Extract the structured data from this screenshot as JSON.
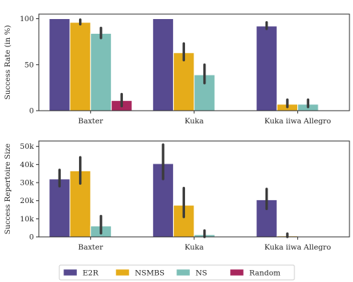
{
  "colors": {
    "E2R": "#574a90",
    "NSMBS": "#e5ac1a",
    "NS": "#7dbfb7",
    "Random": "#a8275d",
    "errorbar": "#3b3b3b",
    "axis": "#262626"
  },
  "legend": {
    "placement": "bottom-center",
    "entries": [
      "E2R",
      "NSMBS",
      "NS",
      "Random"
    ]
  },
  "chart_data": [
    {
      "type": "bar",
      "ylabel": "Success Rate (in %)",
      "categories": [
        "Baxter",
        "Kuka",
        "Kuka iiwa Allegro"
      ],
      "ylim": [
        0,
        105
      ],
      "yticks": [
        0,
        50,
        100
      ],
      "ytick_labels": [
        "0",
        "50",
        "100"
      ],
      "grid": false,
      "series": [
        {
          "name": "E2R",
          "values": [
            100,
            100,
            92
          ],
          "err_low": [
            null,
            null,
            89
          ],
          "err_high": [
            null,
            null,
            96
          ]
        },
        {
          "name": "NSMBS",
          "values": [
            96,
            63,
            7
          ],
          "err_low": [
            94,
            55,
            4
          ],
          "err_high": [
            99,
            73,
            12
          ]
        },
        {
          "name": "NS",
          "values": [
            84,
            39,
            7
          ],
          "err_low": [
            79,
            30,
            4
          ],
          "err_high": [
            90,
            50,
            12
          ]
        },
        {
          "name": "Random",
          "values": [
            11,
            0,
            0
          ],
          "err_low": [
            5,
            null,
            null
          ],
          "err_high": [
            18,
            null,
            null
          ]
        }
      ]
    },
    {
      "type": "bar",
      "ylabel": "Success Repertoire Size",
      "categories": [
        "Baxter",
        "Kuka",
        "Kuka iiwa Allegro"
      ],
      "ylim": [
        0,
        53000
      ],
      "yticks": [
        0,
        10000,
        20000,
        30000,
        40000,
        50000
      ],
      "ytick_labels": [
        "0",
        "10k",
        "20k",
        "30k",
        "40k",
        "50k"
      ],
      "grid": false,
      "series": [
        {
          "name": "E2R",
          "values": [
            32000,
            40500,
            20500
          ],
          "err_low": [
            28000,
            32000,
            15500
          ],
          "err_high": [
            37000,
            51000,
            26500
          ]
        },
        {
          "name": "NSMBS",
          "values": [
            36500,
            17500,
            500
          ],
          "err_low": [
            29500,
            11000,
            0
          ],
          "err_high": [
            44000,
            27000,
            1800
          ]
        },
        {
          "name": "NS",
          "values": [
            6000,
            1200,
            0
          ],
          "err_low": [
            2000,
            0,
            null
          ],
          "err_high": [
            11500,
            3500,
            null
          ]
        },
        {
          "name": "Random",
          "values": [
            0,
            0,
            0
          ],
          "err_low": [
            null,
            null,
            null
          ],
          "err_high": [
            null,
            null,
            null
          ]
        }
      ]
    }
  ]
}
